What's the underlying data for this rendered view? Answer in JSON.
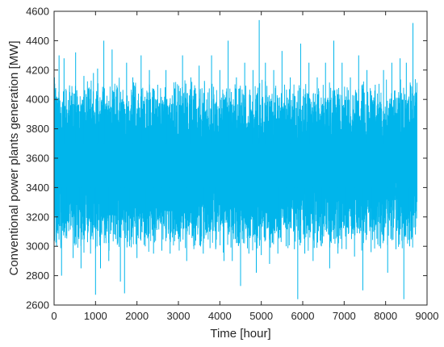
{
  "chart_data": {
    "type": "line",
    "title": "",
    "xlabel": "Time [hour]",
    "ylabel": "Conventional power plants generation [MW]",
    "xlim": [
      0,
      9000
    ],
    "ylim": [
      2600,
      4600
    ],
    "x_ticks": [
      0,
      1000,
      2000,
      3000,
      4000,
      5000,
      6000,
      7000,
      8000,
      9000
    ],
    "y_ticks": [
      2600,
      2800,
      3000,
      3200,
      3400,
      3600,
      3800,
      4000,
      4200,
      4400,
      4600
    ],
    "grid": false,
    "box": true,
    "series": [
      {
        "color": "#00b5eb",
        "x_range": [
          1,
          8760
        ],
        "points": [
          [
            0,
            3600
          ],
          [
            10,
            4150
          ],
          [
            60,
            3000
          ],
          [
            120,
            4300
          ],
          [
            180,
            2800
          ],
          [
            240,
            4280
          ],
          [
            300,
            3250
          ],
          [
            380,
            4050
          ],
          [
            460,
            2920
          ],
          [
            520,
            4320
          ],
          [
            600,
            3050
          ],
          [
            650,
            2850
          ],
          [
            720,
            4160
          ],
          [
            820,
            3350
          ],
          [
            880,
            2950
          ],
          [
            950,
            4180
          ],
          [
            1000,
            2670
          ],
          [
            1050,
            4210
          ],
          [
            1120,
            2850
          ],
          [
            1200,
            4400
          ],
          [
            1280,
            3100
          ],
          [
            1320,
            2900
          ],
          [
            1400,
            4340
          ],
          [
            1500,
            3300
          ],
          [
            1600,
            2760
          ],
          [
            1700,
            2680
          ],
          [
            1750,
            4250
          ],
          [
            1820,
            3000
          ],
          [
            1900,
            4150
          ],
          [
            2000,
            2920
          ],
          [
            2100,
            4300
          ],
          [
            2200,
            3000
          ],
          [
            2300,
            4200
          ],
          [
            2400,
            2950
          ],
          [
            2500,
            4100
          ],
          [
            2600,
            2970
          ],
          [
            2700,
            4200
          ],
          [
            2800,
            2950
          ],
          [
            2900,
            4060
          ],
          [
            3000,
            3050
          ],
          [
            3100,
            4300
          ],
          [
            3200,
            2900
          ],
          [
            3300,
            4150
          ],
          [
            3400,
            3100
          ],
          [
            3500,
            4230
          ],
          [
            3600,
            2950
          ],
          [
            3680,
            4000
          ],
          [
            3750,
            3100
          ],
          [
            3800,
            4300
          ],
          [
            3900,
            2980
          ],
          [
            4000,
            4200
          ],
          [
            4100,
            2900
          ],
          [
            4200,
            4400
          ],
          [
            4300,
            2900
          ],
          [
            4400,
            4150
          ],
          [
            4500,
            2730
          ],
          [
            4600,
            4250
          ],
          [
            4700,
            2950
          ],
          [
            4800,
            4200
          ],
          [
            4880,
            2820
          ],
          [
            4950,
            4540
          ],
          [
            5000,
            2940
          ],
          [
            5100,
            4250
          ],
          [
            5200,
            2880
          ],
          [
            5300,
            4200
          ],
          [
            5400,
            2950
          ],
          [
            5500,
            4330
          ],
          [
            5600,
            3000
          ],
          [
            5700,
            4150
          ],
          [
            5800,
            2980
          ],
          [
            5880,
            2640
          ],
          [
            5950,
            4380
          ],
          [
            6050,
            2950
          ],
          [
            6150,
            4250
          ],
          [
            6250,
            2900
          ],
          [
            6350,
            4150
          ],
          [
            6450,
            3000
          ],
          [
            6550,
            4250
          ],
          [
            6650,
            2850
          ],
          [
            6750,
            4400
          ],
          [
            6850,
            2950
          ],
          [
            6950,
            4250
          ],
          [
            7050,
            2980
          ],
          [
            7150,
            4150
          ],
          [
            7250,
            2930
          ],
          [
            7350,
            4300
          ],
          [
            7450,
            2700
          ],
          [
            7550,
            4200
          ],
          [
            7650,
            2960
          ],
          [
            7750,
            4100
          ],
          [
            7850,
            3000
          ],
          [
            7950,
            4200
          ],
          [
            8050,
            2820
          ],
          [
            8150,
            4250
          ],
          [
            8250,
            2980
          ],
          [
            8350,
            4280
          ],
          [
            8440,
            2640
          ],
          [
            8500,
            4250
          ],
          [
            8580,
            3000
          ],
          [
            8660,
            4520
          ],
          [
            8720,
            3080
          ],
          [
            8760,
            3400
          ]
        ]
      }
    ]
  }
}
